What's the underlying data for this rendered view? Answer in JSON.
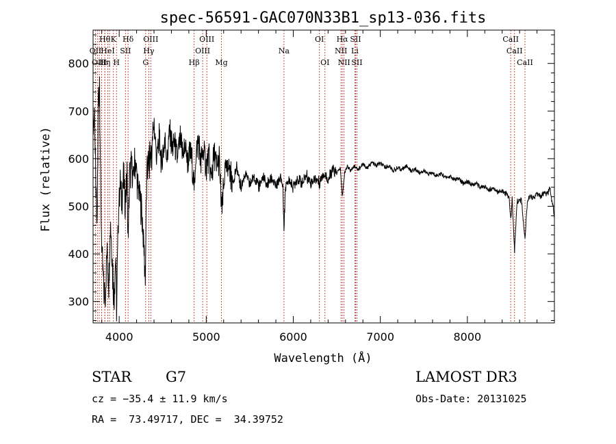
{
  "chart_data": {
    "type": "line",
    "title": "spec-56591-GAC070N33B1_sp13-036.fits",
    "xlabel": "Wavelength (Å)",
    "ylabel": "Flux (relative)",
    "xlim": [
      3700,
      9000
    ],
    "ylim": [
      255,
      870
    ],
    "xticks": [
      4000,
      5000,
      6000,
      7000,
      8000
    ],
    "yticks": [
      300,
      400,
      500,
      600,
      700,
      800
    ],
    "grid": false,
    "series": [
      {
        "anchors": [
          [
            3700,
            660
          ],
          [
            3715,
            700
          ],
          [
            3730,
            560
          ],
          [
            3745,
            430
          ],
          [
            3760,
            720
          ],
          [
            3775,
            760
          ],
          [
            3790,
            500
          ],
          [
            3805,
            380
          ],
          [
            3820,
            340
          ],
          [
            3840,
            300
          ],
          [
            3860,
            420
          ],
          [
            3880,
            330
          ],
          [
            3900,
            470
          ],
          [
            3920,
            380
          ],
          [
            3940,
            310
          ],
          [
            3960,
            400
          ],
          [
            3970,
            270
          ],
          [
            3990,
            480
          ],
          [
            4010,
            550
          ],
          [
            4030,
            520
          ],
          [
            4050,
            560
          ],
          [
            4070,
            510
          ],
          [
            4090,
            570
          ],
          [
            4101,
            420
          ],
          [
            4120,
            560
          ],
          [
            4140,
            590
          ],
          [
            4160,
            550
          ],
          [
            4180,
            600
          ],
          [
            4200,
            570
          ],
          [
            4220,
            540
          ],
          [
            4240,
            520
          ],
          [
            4260,
            480
          ],
          [
            4280,
            430
          ],
          [
            4300,
            350
          ],
          [
            4315,
            540
          ],
          [
            4330,
            590
          ],
          [
            4350,
            600
          ],
          [
            4380,
            620
          ],
          [
            4400,
            680
          ],
          [
            4430,
            600
          ],
          [
            4460,
            640
          ],
          [
            4490,
            590
          ],
          [
            4520,
            640
          ],
          [
            4550,
            600
          ],
          [
            4580,
            660
          ],
          [
            4610,
            620
          ],
          [
            4640,
            630
          ],
          [
            4670,
            600
          ],
          [
            4700,
            640
          ],
          [
            4730,
            610
          ],
          [
            4760,
            630
          ],
          [
            4790,
            590
          ],
          [
            4820,
            620
          ],
          [
            4850,
            570
          ],
          [
            4861,
            530
          ],
          [
            4880,
            600
          ],
          [
            4910,
            640
          ],
          [
            4940,
            590
          ],
          [
            4970,
            620
          ],
          [
            5000,
            580
          ],
          [
            5030,
            600
          ],
          [
            5060,
            560
          ],
          [
            5090,
            610
          ],
          [
            5120,
            580
          ],
          [
            5150,
            600
          ],
          [
            5167,
            520
          ],
          [
            5183,
            490
          ],
          [
            5210,
            570
          ],
          [
            5250,
            590
          ],
          [
            5300,
            550
          ],
          [
            5350,
            580
          ],
          [
            5400,
            540
          ],
          [
            5450,
            570
          ],
          [
            5500,
            545
          ],
          [
            5550,
            565
          ],
          [
            5600,
            540
          ],
          [
            5650,
            560
          ],
          [
            5700,
            545
          ],
          [
            5750,
            560
          ],
          [
            5800,
            540
          ],
          [
            5850,
            560
          ],
          [
            5880,
            545
          ],
          [
            5893,
            450
          ],
          [
            5910,
            540
          ],
          [
            5950,
            555
          ],
          [
            6000,
            540
          ],
          [
            6050,
            560
          ],
          [
            6100,
            545
          ],
          [
            6150,
            565
          ],
          [
            6200,
            548
          ],
          [
            6250,
            560
          ],
          [
            6300,
            550
          ],
          [
            6350,
            570
          ],
          [
            6400,
            555
          ],
          [
            6450,
            575
          ],
          [
            6500,
            570
          ],
          [
            6540,
            580
          ],
          [
            6563,
            520
          ],
          [
            6590,
            570
          ],
          [
            6620,
            585
          ],
          [
            6660,
            575
          ],
          [
            6700,
            585
          ],
          [
            6750,
            578
          ],
          [
            6800,
            588
          ],
          [
            6850,
            580
          ],
          [
            6900,
            592
          ],
          [
            6950,
            585
          ],
          [
            7000,
            590
          ],
          [
            7050,
            582
          ],
          [
            7100,
            584
          ],
          [
            7150,
            575
          ],
          [
            7200,
            580
          ],
          [
            7250,
            578
          ],
          [
            7300,
            585
          ],
          [
            7350,
            575
          ],
          [
            7400,
            578
          ],
          [
            7450,
            570
          ],
          [
            7500,
            575
          ],
          [
            7550,
            568
          ],
          [
            7600,
            570
          ],
          [
            7650,
            565
          ],
          [
            7700,
            568
          ],
          [
            7750,
            560
          ],
          [
            7800,
            562
          ],
          [
            7850,
            555
          ],
          [
            7900,
            558
          ],
          [
            7950,
            548
          ],
          [
            8000,
            552
          ],
          [
            8050,
            545
          ],
          [
            8100,
            548
          ],
          [
            8150,
            540
          ],
          [
            8200,
            542
          ],
          [
            8250,
            535
          ],
          [
            8300,
            538
          ],
          [
            8350,
            530
          ],
          [
            8400,
            532
          ],
          [
            8450,
            525
          ],
          [
            8480,
            520
          ],
          [
            8498,
            470
          ],
          [
            8515,
            515
          ],
          [
            8542,
            405
          ],
          [
            8570,
            510
          ],
          [
            8620,
            515
          ],
          [
            8662,
            435
          ],
          [
            8690,
            512
          ],
          [
            8720,
            520
          ],
          [
            8760,
            518
          ],
          [
            8800,
            525
          ],
          [
            8840,
            520
          ],
          [
            8880,
            528
          ],
          [
            8920,
            525
          ],
          [
            8950,
            540
          ],
          [
            8970,
            512
          ],
          [
            8985,
            505
          ],
          [
            9000,
            470
          ]
        ]
      }
    ],
    "lines": [
      {
        "x": 3727,
        "label": "OII",
        "row": 2
      },
      {
        "x": 3750,
        "label": "",
        "row": -1
      },
      {
        "x": 3771,
        "label": "OIII",
        "row": 3
      },
      {
        "x": 3798,
        "label": "",
        "row": -1
      },
      {
        "x": 3835,
        "label": "Hθ",
        "row": 1
      },
      {
        "x": 3835,
        "label": "Hη",
        "row": 3
      },
      {
        "x": 3869,
        "label": "HeI",
        "row": 2
      },
      {
        "x": 3889,
        "label": "",
        "row": -1
      },
      {
        "x": 3934,
        "label": "K",
        "row": 1
      },
      {
        "x": 3969,
        "label": "H",
        "row": 3
      },
      {
        "x": 4072,
        "label": "SII",
        "row": 2
      },
      {
        "x": 4102,
        "label": "Hδ",
        "row": 1
      },
      {
        "x": 4304,
        "label": "G",
        "row": 3
      },
      {
        "x": 4340,
        "label": "Hγ",
        "row": 2
      },
      {
        "x": 4363,
        "label": "OIII",
        "row": 1
      },
      {
        "x": 4861,
        "label": "Hβ",
        "row": 3
      },
      {
        "x": 4959,
        "label": "OIII",
        "row": 2
      },
      {
        "x": 5007,
        "label": "OIII",
        "row": 1
      },
      {
        "x": 5175,
        "label": "Mg",
        "row": 3
      },
      {
        "x": 5893,
        "label": "Na",
        "row": 2
      },
      {
        "x": 6300,
        "label": "OI",
        "row": 1
      },
      {
        "x": 6364,
        "label": "OI",
        "row": 3
      },
      {
        "x": 6548,
        "label": "NII",
        "row": 2
      },
      {
        "x": 6563,
        "label": "Hα",
        "row": 1
      },
      {
        "x": 6583,
        "label": "NII",
        "row": 3
      },
      {
        "x": 6707,
        "label": "Li",
        "row": 2
      },
      {
        "x": 6716,
        "label": "SII",
        "row": 1
      },
      {
        "x": 6731,
        "label": "SII",
        "row": 3
      },
      {
        "x": 8498,
        "label": "CaII",
        "row": 1
      },
      {
        "x": 8542,
        "label": "CaII",
        "row": 2
      },
      {
        "x": 8662,
        "label": "CaII",
        "row": 3
      }
    ]
  },
  "info": {
    "class": "STAR",
    "subclass": "G7",
    "survey": "LAMOST DR3",
    "cz": "cz = −35.4 ± 11.9 km/s",
    "obsdate": "Obs-Date: 20131025",
    "radec": "RA =  73.49717, DEC =  34.39752"
  }
}
